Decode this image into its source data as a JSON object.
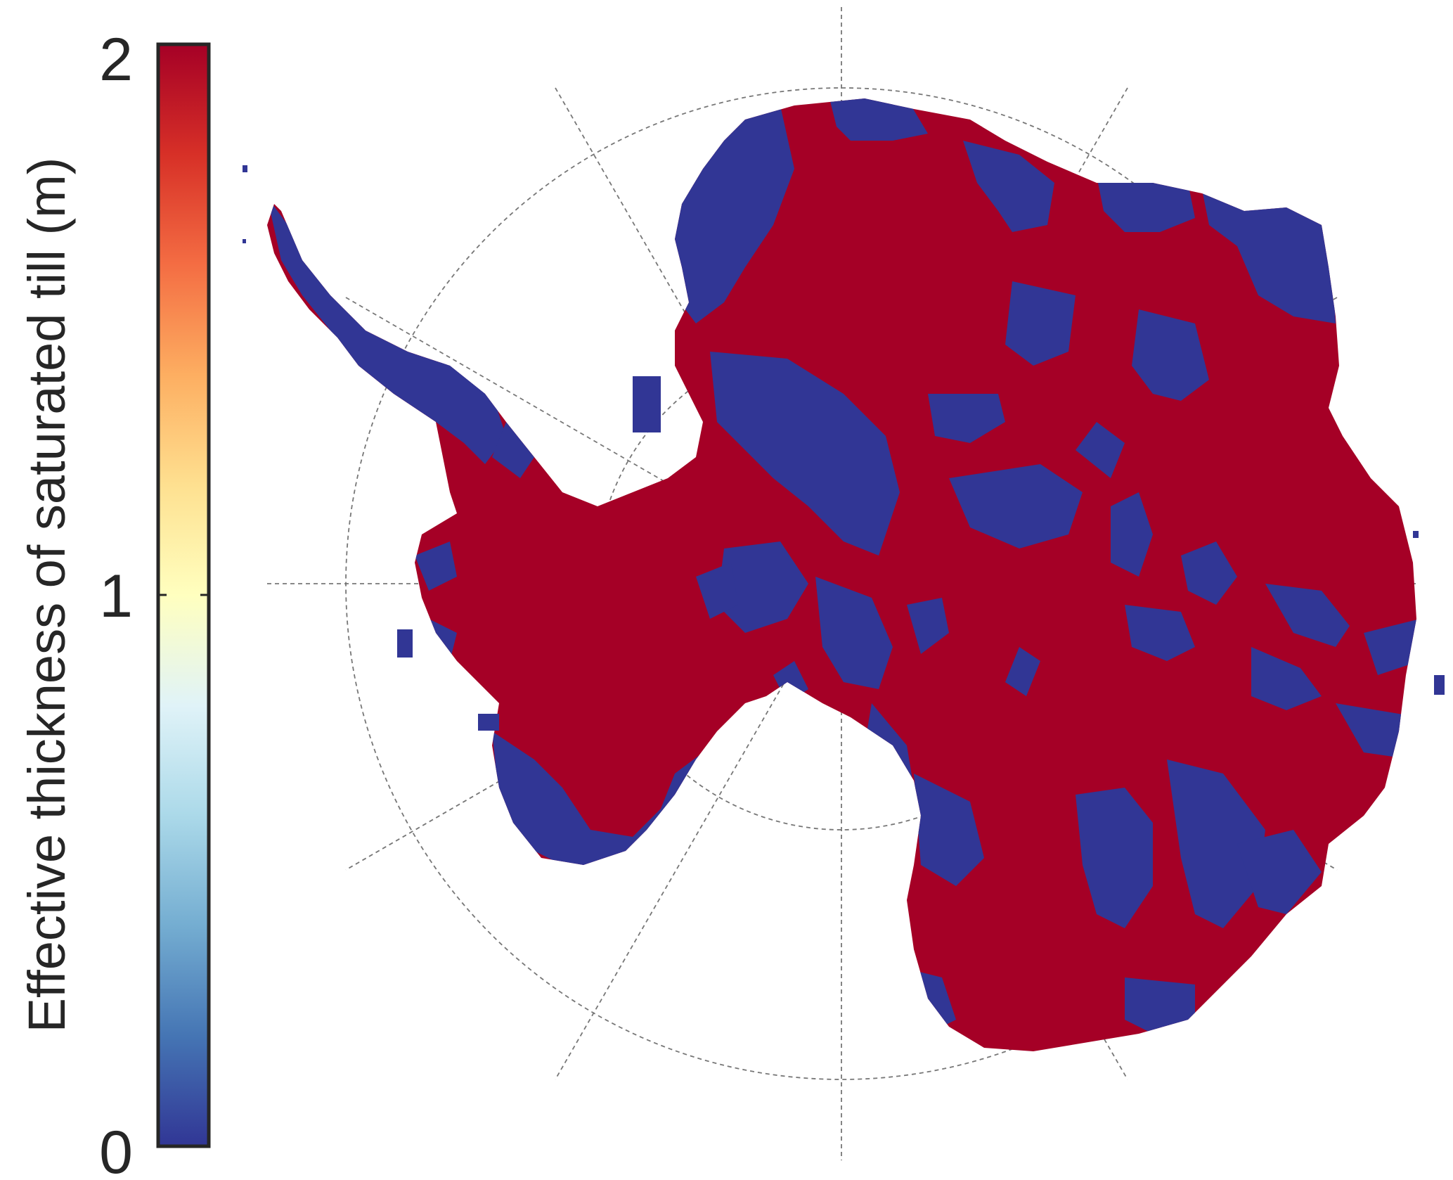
{
  "colorbar": {
    "label": "Effective thickness of saturated till (m)",
    "ticks": [
      {
        "value": 2,
        "label": "2"
      },
      {
        "value": 1,
        "label": "1"
      },
      {
        "value": 0,
        "label": "0"
      }
    ],
    "min": 0,
    "max": 2,
    "colormap": [
      "#313695",
      "#4575b4",
      "#74add1",
      "#abd9e9",
      "#e0f3f8",
      "#ffffbf",
      "#fee090",
      "#fdae61",
      "#f46d43",
      "#d73027",
      "#a50026"
    ]
  },
  "map": {
    "projection": "south-polar-stereographic",
    "graticule": "dashed",
    "colors": {
      "high": "#a50026",
      "low": "#313695",
      "graticule": "#777777"
    }
  }
}
